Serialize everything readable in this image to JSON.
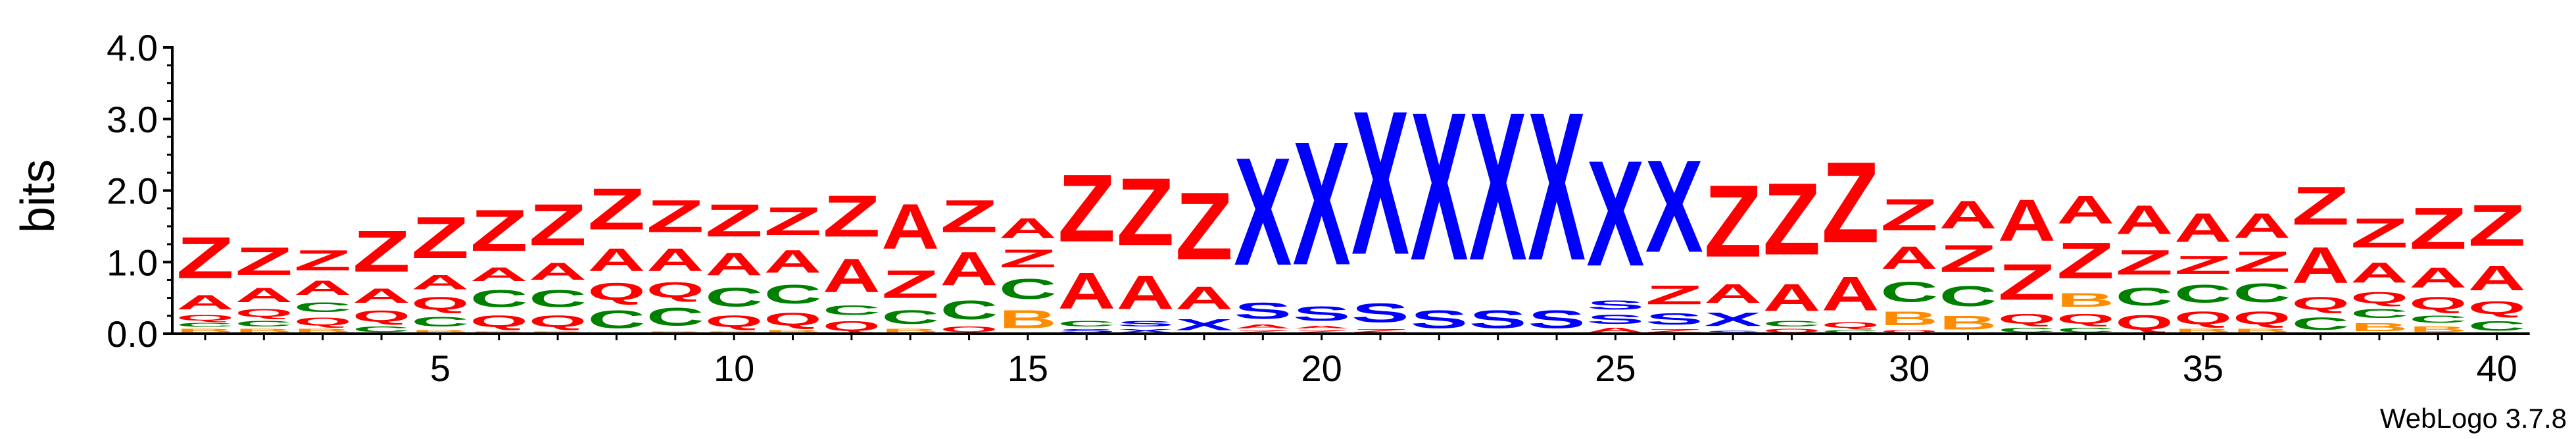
{
  "chart_data": {
    "type": "sequence-logo",
    "ylabel": "bits",
    "credit": "WebLogo 3.7.8",
    "ylim": [
      0,
      4.0
    ],
    "y_ticks": [
      "0.0",
      "1.0",
      "2.0",
      "3.0",
      "4.0"
    ],
    "y_tick_values": [
      0,
      1,
      2,
      3,
      4
    ],
    "x_range": [
      1,
      40
    ],
    "x_ticks": [
      "5",
      "10",
      "15",
      "20",
      "25",
      "30",
      "35",
      "40"
    ],
    "x_tick_values": [
      5,
      10,
      15,
      20,
      25,
      30,
      35,
      40
    ],
    "colors": {
      "Z": "#ff0000",
      "A": "#ff0000",
      "X": "#0000ff",
      "S": "#0000ff",
      "C": "#008000",
      "Q": "#ff0000",
      "B": "#ff8c00"
    },
    "positions": [
      {
        "pos": 1,
        "stack": [
          [
            "B",
            0.08
          ],
          [
            "C",
            0.08
          ],
          [
            "Q",
            0.12
          ],
          [
            "A",
            0.32
          ],
          [
            "Z",
            0.92
          ]
        ]
      },
      {
        "pos": 2,
        "stack": [
          [
            "B",
            0.08
          ],
          [
            "C",
            0.12
          ],
          [
            "Q",
            0.18
          ],
          [
            "A",
            0.32
          ],
          [
            "Z",
            0.62
          ]
        ]
      },
      {
        "pos": 3,
        "stack": [
          [
            "B",
            0.08
          ],
          [
            "Q",
            0.18
          ],
          [
            "C",
            0.22
          ],
          [
            "A",
            0.32
          ],
          [
            "Z",
            0.45
          ]
        ]
      },
      {
        "pos": 4,
        "stack": [
          [
            "C",
            0.12
          ],
          [
            "Q",
            0.25
          ],
          [
            "A",
            0.32
          ],
          [
            "Z",
            0.92
          ]
        ]
      },
      {
        "pos": 5,
        "stack": [
          [
            "B",
            0.06
          ],
          [
            "C",
            0.22
          ],
          [
            "Q",
            0.28
          ],
          [
            "A",
            0.32
          ],
          [
            "Z",
            0.92
          ]
        ]
      },
      {
        "pos": 6,
        "stack": [
          [
            "B",
            0.04
          ],
          [
            "Q",
            0.26
          ],
          [
            "C",
            0.38
          ],
          [
            "A",
            0.3
          ],
          [
            "Z",
            0.92
          ]
        ]
      },
      {
        "pos": 7,
        "stack": [
          [
            "B",
            0.04
          ],
          [
            "Q",
            0.26
          ],
          [
            "C",
            0.38
          ],
          [
            "A",
            0.38
          ],
          [
            "Z",
            0.92
          ]
        ]
      },
      {
        "pos": 8,
        "stack": [
          [
            "C",
            0.4
          ],
          [
            "Q",
            0.38
          ],
          [
            "A",
            0.5
          ],
          [
            "Z",
            0.92
          ]
        ]
      },
      {
        "pos": 9,
        "stack": [
          [
            "B",
            0.04
          ],
          [
            "C",
            0.4
          ],
          [
            "Q",
            0.34
          ],
          [
            "A",
            0.5
          ],
          [
            "Z",
            0.72
          ]
        ]
      },
      {
        "pos": 10,
        "stack": [
          [
            "B",
            0.04
          ],
          [
            "Q",
            0.26
          ],
          [
            "C",
            0.42
          ],
          [
            "A",
            0.5
          ],
          [
            "Z",
            0.72
          ]
        ]
      },
      {
        "pos": 11,
        "stack": [
          [
            "B",
            0.06
          ],
          [
            "Q",
            0.28
          ],
          [
            "C",
            0.42
          ],
          [
            "A",
            0.5
          ],
          [
            "Z",
            0.62
          ]
        ]
      },
      {
        "pos": 12,
        "stack": [
          [
            "Q",
            0.22
          ],
          [
            "C",
            0.22
          ],
          [
            "A",
            0.74
          ],
          [
            "Z",
            0.92
          ]
        ]
      },
      {
        "pos": 13,
        "stack": [
          [
            "B",
            0.08
          ],
          [
            "C",
            0.3
          ],
          [
            "Z",
            0.62
          ],
          [
            "A",
            1.0
          ]
        ]
      },
      {
        "pos": 14,
        "stack": [
          [
            "Q",
            0.12
          ],
          [
            "C",
            0.42
          ],
          [
            "A",
            0.74
          ],
          [
            "Z",
            0.72
          ]
        ]
      },
      {
        "pos": 15,
        "stack": [
          [
            "B",
            0.4
          ],
          [
            "C",
            0.45
          ],
          [
            "Z",
            0.4
          ],
          [
            "A",
            0.45
          ]
        ]
      },
      {
        "pos": 16,
        "stack": [
          [
            "S",
            0.08
          ],
          [
            "C",
            0.12
          ],
          [
            "A",
            0.8
          ],
          [
            "Z",
            1.5
          ]
        ]
      },
      {
        "pos": 17,
        "stack": [
          [
            "X",
            0.08
          ],
          [
            "S",
            0.12
          ],
          [
            "A",
            0.75
          ],
          [
            "Z",
            1.5
          ]
        ]
      },
      {
        "pos": 18,
        "stack": [
          [
            "X",
            0.25
          ],
          [
            "A",
            0.5
          ],
          [
            "Z",
            1.5
          ]
        ]
      },
      {
        "pos": 19,
        "stack": [
          [
            "Z",
            0.06
          ],
          [
            "A",
            0.08
          ],
          [
            "S",
            0.36
          ],
          [
            "X",
            2.4
          ]
        ]
      },
      {
        "pos": 20,
        "stack": [
          [
            "Z",
            0.06
          ],
          [
            "A",
            0.06
          ],
          [
            "S",
            0.32
          ],
          [
            "X",
            2.75
          ]
        ]
      },
      {
        "pos": 21,
        "stack": [
          [
            "Z",
            0.08
          ],
          [
            "S",
            0.42
          ],
          [
            "X",
            3.2
          ]
        ]
      },
      {
        "pos": 22,
        "stack": [
          [
            "S",
            0.4
          ],
          [
            "X",
            3.3
          ]
        ]
      },
      {
        "pos": 23,
        "stack": [
          [
            "S",
            0.4
          ],
          [
            "X",
            3.3
          ]
        ]
      },
      {
        "pos": 24,
        "stack": [
          [
            "S",
            0.4
          ],
          [
            "X",
            3.3
          ]
        ]
      },
      {
        "pos": 25,
        "stack": [
          [
            "A",
            0.1
          ],
          [
            "S",
            0.2
          ],
          [
            "S",
            0.2
          ],
          [
            "X",
            2.35
          ]
        ]
      },
      {
        "pos": 26,
        "stack": [
          [
            "Z",
            0.08
          ],
          [
            "S",
            0.25
          ],
          [
            "Z",
            0.42
          ],
          [
            "X",
            2.05
          ]
        ]
      },
      {
        "pos": 27,
        "stack": [
          [
            "S",
            0.05
          ],
          [
            "X",
            0.3
          ],
          [
            "A",
            0.42
          ],
          [
            "Z",
            1.6
          ]
        ]
      },
      {
        "pos": 28,
        "stack": [
          [
            "Q",
            0.08
          ],
          [
            "C",
            0.12
          ],
          [
            "A",
            0.6
          ],
          [
            "Z",
            1.6
          ]
        ]
      },
      {
        "pos": 29,
        "stack": [
          [
            "C",
            0.06
          ],
          [
            "Q",
            0.12
          ],
          [
            "A",
            0.75
          ],
          [
            "Z",
            1.8
          ]
        ]
      },
      {
        "pos": 30,
        "stack": [
          [
            "Q",
            0.06
          ],
          [
            "B",
            0.3
          ],
          [
            "C",
            0.45
          ],
          [
            "A",
            0.5
          ],
          [
            "Z",
            0.7
          ]
        ]
      },
      {
        "pos": 31,
        "stack": [
          [
            "B",
            0.3
          ],
          [
            "C",
            0.45
          ],
          [
            "Z",
            0.6
          ],
          [
            "A",
            0.62
          ]
        ]
      },
      {
        "pos": 32,
        "stack": [
          [
            "C",
            0.1
          ],
          [
            "Q",
            0.22
          ],
          [
            "Z",
            0.8
          ],
          [
            "A",
            0.92
          ]
        ]
      },
      {
        "pos": 33,
        "stack": [
          [
            "C",
            0.1
          ],
          [
            "Q",
            0.22
          ],
          [
            "B",
            0.3
          ],
          [
            "Z",
            0.8
          ],
          [
            "A",
            0.62
          ]
        ]
      },
      {
        "pos": 34,
        "stack": [
          [
            "Q",
            0.32
          ],
          [
            "C",
            0.4
          ],
          [
            "Z",
            0.55
          ],
          [
            "A",
            0.64
          ]
        ]
      },
      {
        "pos": 35,
        "stack": [
          [
            "B",
            0.08
          ],
          [
            "Q",
            0.28
          ],
          [
            "C",
            0.4
          ],
          [
            "Z",
            0.4
          ],
          [
            "A",
            0.64
          ]
        ]
      },
      {
        "pos": 36,
        "stack": [
          [
            "B",
            0.08
          ],
          [
            "Q",
            0.28
          ],
          [
            "C",
            0.42
          ],
          [
            "Z",
            0.45
          ],
          [
            "A",
            0.55
          ]
        ]
      },
      {
        "pos": 37,
        "stack": [
          [
            "C",
            0.28
          ],
          [
            "Q",
            0.28
          ],
          [
            "A",
            0.8
          ],
          [
            "Z",
            0.85
          ]
        ]
      },
      {
        "pos": 38,
        "stack": [
          [
            "B",
            0.18
          ],
          [
            "C",
            0.2
          ],
          [
            "Q",
            0.25
          ],
          [
            "A",
            0.45
          ],
          [
            "Z",
            0.65
          ]
        ]
      },
      {
        "pos": 39,
        "stack": [
          [
            "B",
            0.12
          ],
          [
            "C",
            0.16
          ],
          [
            "Q",
            0.28
          ],
          [
            "A",
            0.45
          ],
          [
            "Z",
            0.92
          ]
        ]
      },
      {
        "pos": 40,
        "stack": [
          [
            "C",
            0.22
          ],
          [
            "Q",
            0.28
          ],
          [
            "A",
            0.55
          ],
          [
            "Z",
            0.92
          ]
        ]
      }
    ]
  }
}
